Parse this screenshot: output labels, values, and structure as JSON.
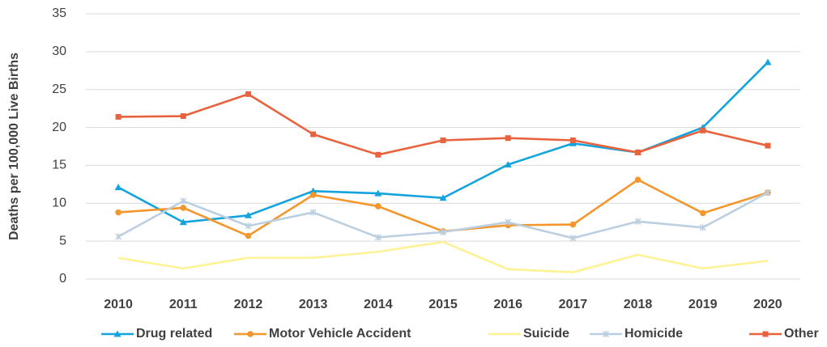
{
  "chart_data": {
    "type": "line",
    "y_label": "Deaths per 100,000 Live Births",
    "categories": [
      "2010",
      "2011",
      "2012",
      "2013",
      "2014",
      "2015",
      "2016",
      "2017",
      "2018",
      "2019",
      "2020"
    ],
    "series": [
      {
        "name": "Drug related",
        "color": "#13a3dd",
        "marker": "triangle",
        "values": [
          12.1,
          7.5,
          8.4,
          11.6,
          11.3,
          10.7,
          15.1,
          17.9,
          16.7,
          20.0,
          28.6
        ]
      },
      {
        "name": "Motor Vehicle Accident",
        "color": "#f3962c",
        "marker": "circle",
        "values": [
          8.8,
          9.4,
          5.7,
          11.1,
          9.6,
          6.3,
          7.1,
          7.2,
          13.1,
          8.7,
          11.4
        ]
      },
      {
        "name": "Suicide",
        "color": "#fdf294",
        "marker": "none",
        "values": [
          2.8,
          1.4,
          2.8,
          2.8,
          3.6,
          4.9,
          1.3,
          0.9,
          3.2,
          1.4,
          2.4
        ]
      },
      {
        "name": "Homicide",
        "color": "#bccfe0",
        "marker": "x",
        "values": [
          5.6,
          10.3,
          7.0,
          8.8,
          5.5,
          6.2,
          7.5,
          5.4,
          7.6,
          6.8,
          11.4
        ]
      },
      {
        "name": "Other",
        "color": "#e8623d",
        "marker": "square",
        "values": [
          21.4,
          21.5,
          24.4,
          19.1,
          16.4,
          18.3,
          18.6,
          18.3,
          16.7,
          19.6,
          17.6
        ]
      }
    ],
    "ylim": [
      0,
      35
    ],
    "yticks": [
      0,
      5,
      10,
      15,
      20,
      25,
      30,
      35
    ],
    "grid": true,
    "legend": "bottom"
  }
}
